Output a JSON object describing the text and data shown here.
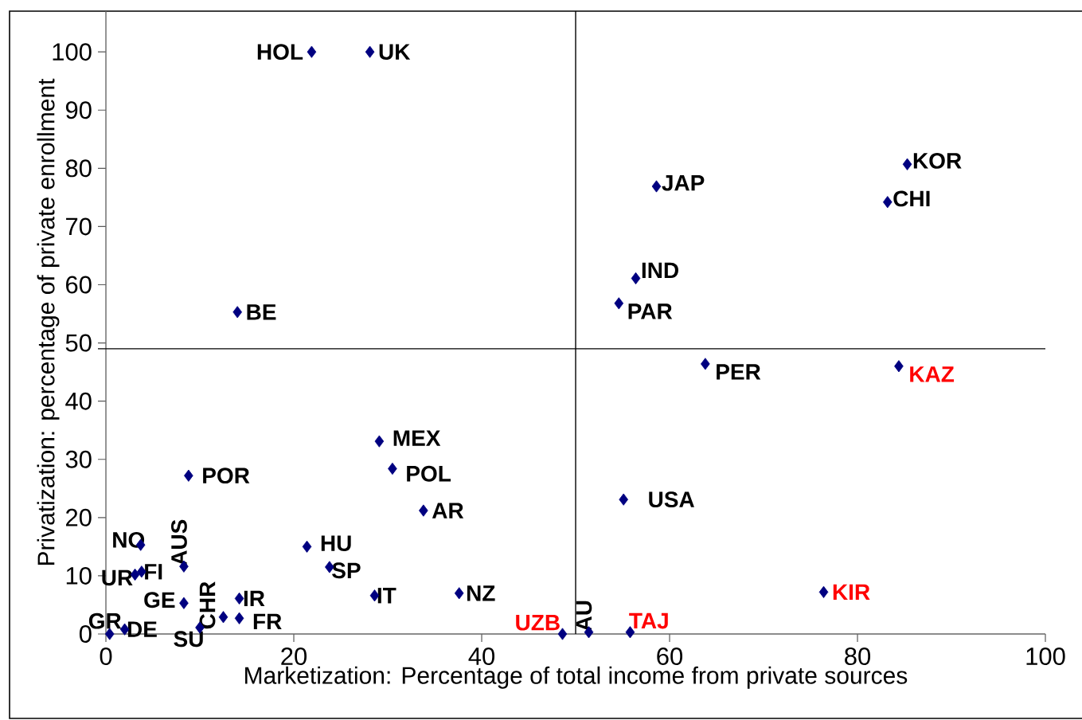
{
  "chart_data": {
    "type": "scatter",
    "xlabel": "Marketization: Percentage of total income from private sources",
    "ylabel": "Privatization: percentage of private enrollment",
    "xlim": [
      0,
      100
    ],
    "ylim": [
      0,
      107
    ],
    "xticks": [
      0,
      20,
      40,
      60,
      80,
      100
    ],
    "yticks": [
      0,
      10,
      20,
      30,
      40,
      50,
      60,
      70,
      80,
      90,
      100
    ],
    "marker": "diamond",
    "grid": false,
    "series": [
      {
        "color": "#000080",
        "x": [
          21.9,
          28.1,
          14.0,
          58.6,
          85.3,
          83.2,
          56.4,
          54.6,
          63.8,
          84.4,
          29.1,
          30.5,
          33.8,
          8.8,
          55.1,
          21.4,
          23.8,
          28.6,
          37.6,
          76.4,
          48.6,
          51.4,
          55.8,
          3.7,
          3.1,
          3.8,
          8.3,
          8.3,
          0.4,
          2.0,
          10.0,
          12.5,
          14.2,
          14.2
        ],
        "values": [
          100,
          100,
          55.3,
          76.9,
          80.7,
          74.2,
          61.1,
          56.8,
          46.4,
          46.0,
          33.1,
          28.4,
          21.2,
          27.2,
          23.1,
          15.0,
          11.5,
          6.6,
          7.0,
          7.2,
          0,
          0.3,
          0.3,
          15.3,
          10.2,
          10.7,
          11.6,
          5.3,
          0,
          0.8,
          1.1,
          2.9,
          6.1,
          2.7
        ]
      }
    ],
    "ref_lines": [
      {
        "axis": "x",
        "value": 50,
        "color": "#000000"
      },
      {
        "axis": "y",
        "value": 49,
        "color": "#000000"
      }
    ],
    "annotations": [
      {
        "text": "HOL",
        "x": 21.9,
        "y": 100
      },
      {
        "text": "UK",
        "x": 28.1,
        "y": 100
      },
      {
        "text": "BE",
        "x": 14.0,
        "y": 55.3
      },
      {
        "text": "JAP",
        "x": 58.6,
        "y": 76.9
      },
      {
        "text": "KOR",
        "x": 85.3,
        "y": 80.7
      },
      {
        "text": "CHI",
        "x": 83.2,
        "y": 74.2
      },
      {
        "text": "IND",
        "x": 56.4,
        "y": 61.1
      },
      {
        "text": "PAR",
        "x": 54.6,
        "y": 56.8
      },
      {
        "text": "PER",
        "x": 63.8,
        "y": 46.4
      },
      {
        "text": "KAZ",
        "x": 84.4,
        "y": 46.0
      },
      {
        "text": "MEX",
        "x": 29.1,
        "y": 33.1
      },
      {
        "text": "POL",
        "x": 30.5,
        "y": 28.4
      },
      {
        "text": "AR",
        "x": 33.8,
        "y": 21.2
      },
      {
        "text": "POR",
        "x": 8.8,
        "y": 27.2
      },
      {
        "text": "USA",
        "x": 55.1,
        "y": 23.1
      },
      {
        "text": "HU",
        "x": 21.4,
        "y": 15.0
      },
      {
        "text": "SP",
        "x": 23.8,
        "y": 11.5
      },
      {
        "text": "IT",
        "x": 28.6,
        "y": 6.6
      },
      {
        "text": "NZ",
        "x": 37.6,
        "y": 7.0
      },
      {
        "text": "KIR",
        "x": 76.4,
        "y": 7.2
      },
      {
        "text": "UZB",
        "x": 48.6,
        "y": 0
      },
      {
        "text": "AU",
        "x": 51.4,
        "y": 0.3
      },
      {
        "text": "TAJ",
        "x": 55.8,
        "y": 0.3
      },
      {
        "text": "NO",
        "x": 3.7,
        "y": 15.3
      },
      {
        "text": "UR",
        "x": 3.1,
        "y": 10.2
      },
      {
        "text": "FI",
        "x": 3.8,
        "y": 10.7
      },
      {
        "text": "AUS",
        "x": 8.3,
        "y": 11.6
      },
      {
        "text": "GE",
        "x": 8.3,
        "y": 5.3
      },
      {
        "text": "GR",
        "x": 0.4,
        "y": 0
      },
      {
        "text": "DE",
        "x": 2.0,
        "y": 0.8
      },
      {
        "text": "SU",
        "x": 10.0,
        "y": 1.1
      },
      {
        "text": "CHR",
        "x": 12.5,
        "y": 2.9
      },
      {
        "text": "IR",
        "x": 14.2,
        "y": 6.1
      },
      {
        "text": "FR",
        "x": 14.2,
        "y": 2.7
      }
    ]
  }
}
